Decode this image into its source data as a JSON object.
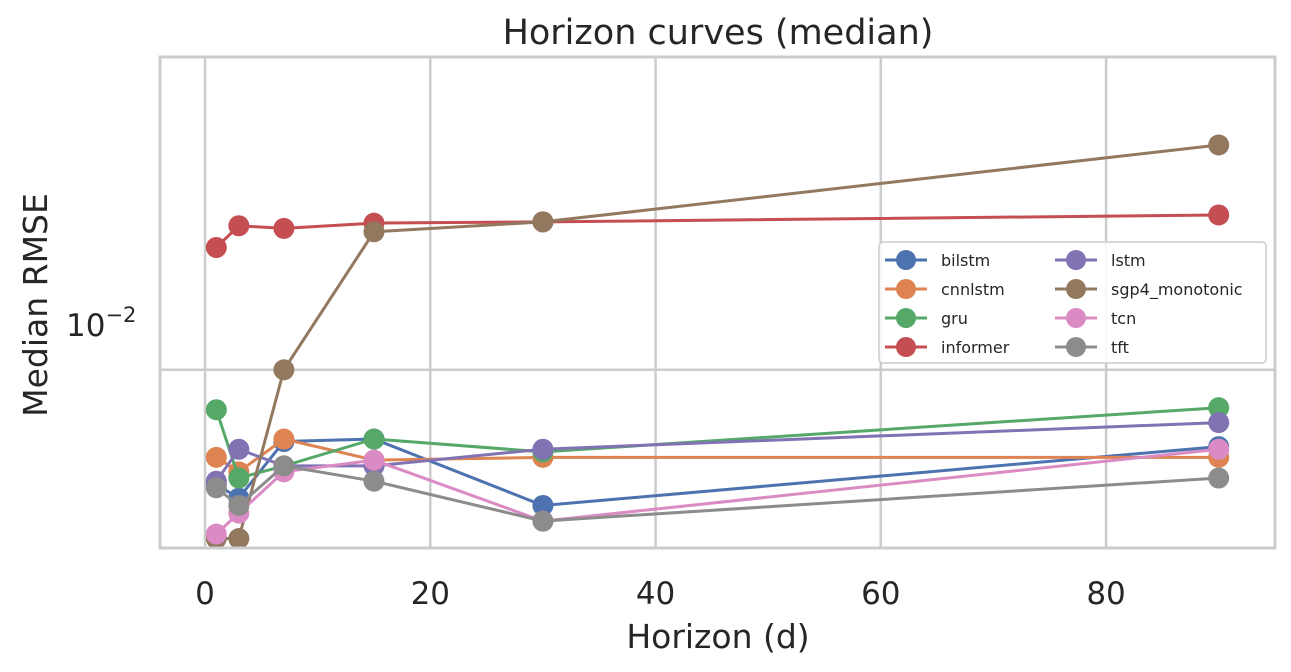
{
  "chart_data": {
    "type": "line",
    "title": "Horizon curves (median)",
    "xlabel": "Horizon (d)",
    "ylabel": "Median RMSE",
    "xlim": [
      -4,
      95
    ],
    "ylim": [
      0.0033,
      0.07
    ],
    "yscale": "log",
    "xticks": [
      0,
      20,
      40,
      60,
      80
    ],
    "xtick_labels": [
      "0",
      "20",
      "40",
      "60",
      "80"
    ],
    "ytick_base": "10",
    "ytick_exp": "−2",
    "ytick_value": 0.01,
    "grid": true,
    "legend_position": "center-right",
    "legend_columns": 2,
    "x": [
      1,
      3,
      7,
      15,
      30,
      90
    ],
    "series": [
      {
        "name": "bilstm",
        "color": "#4c72b0",
        "values": [
          0.0049,
          0.0045,
          0.0064,
          0.0065,
          0.0043,
          0.0062
        ]
      },
      {
        "name": "cnnlstm",
        "color": "#dd8452",
        "values": [
          0.0058,
          0.0053,
          0.0065,
          0.0057,
          0.0058,
          0.0058
        ]
      },
      {
        "name": "gru",
        "color": "#55a868",
        "values": [
          0.0078,
          0.0051,
          0.0055,
          0.0065,
          0.006,
          0.0079
        ]
      },
      {
        "name": "informer",
        "color": "#c44e52",
        "values": [
          0.0214,
          0.0245,
          0.0241,
          0.0249,
          0.0251,
          0.0262
        ]
      },
      {
        "name": "lstm",
        "color": "#8172b3",
        "values": [
          0.005,
          0.0061,
          0.0055,
          0.0055,
          0.0061,
          0.0072
        ]
      },
      {
        "name": "sgp4_monotonic",
        "color": "#937860",
        "values": [
          0.0035,
          0.0035,
          0.01,
          0.0236,
          0.0251,
          0.0405
        ]
      },
      {
        "name": "tcn",
        "color": "#da8bc3",
        "values": [
          0.0036,
          0.0041,
          0.0053,
          0.0057,
          0.0039,
          0.0061
        ]
      },
      {
        "name": "tft",
        "color": "#8c8c8c",
        "values": [
          0.0048,
          0.0043,
          0.0055,
          0.005,
          0.0039,
          0.0051
        ]
      }
    ]
  }
}
